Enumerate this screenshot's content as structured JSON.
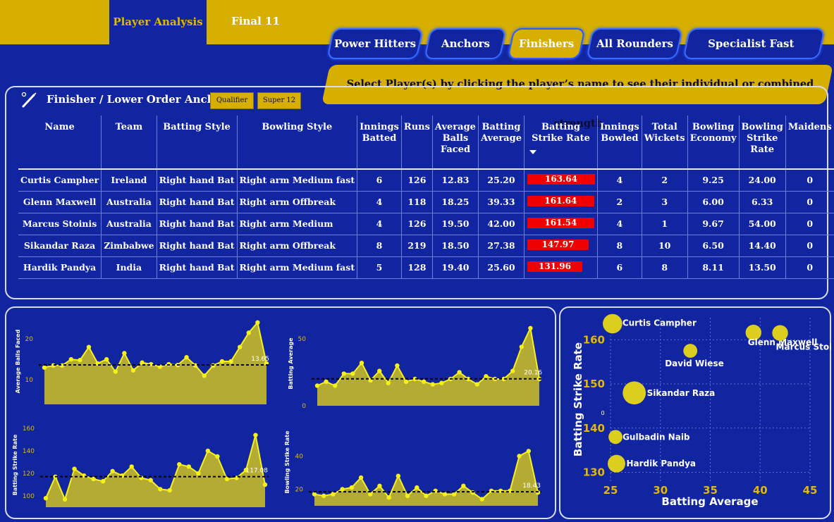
{
  "nav": {
    "tabs": [
      {
        "label": "Player Analysis",
        "active": true
      },
      {
        "label": "Final 11",
        "active": false
      }
    ]
  },
  "categories": [
    {
      "label": "Power Hitters",
      "active": false
    },
    {
      "label": "Anchors",
      "active": false
    },
    {
      "label": "Finishers",
      "active": true
    },
    {
      "label": "All Rounders",
      "active": false
    },
    {
      "label": "Specialist Fast Bowlers",
      "active": false
    }
  ],
  "hint": "Select Player(s) by clicking the player’s name to see their individual or combined strength.",
  "section": {
    "title": "Finisher / Lower Order Anchor",
    "icon": "cricket-bat-icon",
    "filters": [
      "Qualifier",
      "Super 12"
    ]
  },
  "table": {
    "columns": [
      "Name",
      "Team",
      "Batting Style",
      "Bowling Style",
      "Innings Batted",
      "Runs",
      "Average Balls Faced",
      "Batting Average",
      "Batting Strike Rate",
      "Innings Bowled",
      "Total Wickets",
      "Bowling Economy",
      "Bowling Strike Rate",
      "Maidens"
    ],
    "sorted_column": "Batting Strike Rate",
    "sort_direction": "descending",
    "bar_color": "#f00000",
    "rows": [
      [
        "Curtis Campher",
        "Ireland",
        "Right hand Bat",
        "Right arm Medium fast",
        "6",
        "126",
        "12.83",
        "25.20",
        "163.64",
        "4",
        "2",
        "9.25",
        "24.00",
        "0"
      ],
      [
        "Glenn Maxwell",
        "Australia",
        "Right hand Bat",
        "Right arm Offbreak",
        "4",
        "118",
        "18.25",
        "39.33",
        "161.64",
        "2",
        "3",
        "6.00",
        "6.33",
        "0"
      ],
      [
        "Marcus Stoinis",
        "Australia",
        "Right hand Bat",
        "Right arm Medium",
        "4",
        "126",
        "19.50",
        "42.00",
        "161.54",
        "4",
        "1",
        "9.67",
        "54.00",
        "0"
      ],
      [
        "Sikandar Raza",
        "Zimbabwe",
        "Right hand Bat",
        "Right arm Offbreak",
        "8",
        "219",
        "18.50",
        "27.38",
        "147.97",
        "8",
        "10",
        "6.50",
        "14.40",
        "0"
      ],
      [
        "Hardik Pandya",
        "India",
        "Right hand Bat",
        "Right arm Medium fast",
        "5",
        "128",
        "19.40",
        "25.60",
        "131.96",
        "6",
        "8",
        "8.11",
        "13.50",
        "0"
      ]
    ]
  },
  "chart_data": [
    {
      "type": "area",
      "ylabel": "Average Balls Faced",
      "yticks": [
        10,
        20
      ],
      "ylim": [
        4,
        25
      ],
      "values": [
        13,
        13.5,
        13.5,
        15,
        14.8,
        18,
        14,
        15,
        12,
        16.5,
        12.3,
        14.2,
        13.8,
        13.2,
        13.8,
        13.6,
        15.5,
        13.5,
        11,
        13.5,
        14.5,
        14.5,
        18,
        21.5,
        24,
        14
      ],
      "average": 13.65,
      "average_label": "13.65",
      "colors": {
        "fill": "#b3ab33",
        "line": "#f5f01a",
        "avg": "#000000"
      }
    },
    {
      "type": "area",
      "ylabel": "Batting Average",
      "yticks": [
        0,
        50
      ],
      "ylim": [
        0,
        60
      ],
      "values": [
        15,
        18,
        15,
        24,
        24,
        32,
        19,
        26,
        17,
        30,
        18,
        20,
        18,
        16,
        17,
        20,
        25,
        20,
        16,
        22,
        20,
        20,
        26,
        44,
        58,
        20
      ],
      "average": 20.16,
      "average_label": "20.16",
      "colors": {
        "fill": "#b3ab33",
        "line": "#f5f01a",
        "avg": "#000000"
      }
    },
    {
      "type": "area",
      "ylabel": "Batting Strike Rate",
      "yticks": [
        100,
        120,
        140,
        160
      ],
      "ylim": [
        90,
        165
      ],
      "values": [
        98,
        117,
        97,
        124,
        118,
        115,
        113,
        122,
        118,
        126,
        116,
        114,
        106,
        105,
        128,
        126,
        120,
        140,
        135,
        115,
        116,
        123,
        154,
        110
      ],
      "average": 117.08,
      "average_label": "117.08",
      "colors": {
        "fill": "#b3ab33",
        "line": "#f5f01a",
        "avg": "#000000"
      }
    },
    {
      "type": "area",
      "ylabel": "Bowling Strike Rate",
      "yticks": [
        20,
        40
      ],
      "ylim": [
        10,
        55
      ],
      "values": [
        17,
        16,
        17,
        20,
        21,
        27,
        17,
        22,
        15,
        28,
        16,
        21,
        16,
        19,
        17,
        17,
        22,
        18,
        14,
        19,
        19,
        19,
        40,
        43,
        18
      ],
      "average": 18.43,
      "average_label": "18.43",
      "colors": {
        "fill": "#b3ab33",
        "line": "#f5f01a",
        "avg": "#000000"
      }
    },
    {
      "type": "scatter",
      "xlabel": "Batting Average",
      "ylabel": "Batting Strike Rate",
      "xlim": [
        25,
        45
      ],
      "ylim": [
        128,
        165
      ],
      "xticks": [
        25,
        30,
        35,
        40,
        45
      ],
      "yticks": [
        130,
        140,
        150,
        160
      ],
      "grid": true,
      "point_color": "#dcce1e",
      "points": [
        {
          "label": "Curtis Campher",
          "x": 25.2,
          "y": 163.64,
          "size": 6
        },
        {
          "label": "Glenn Maxwell",
          "x": 39.33,
          "y": 161.64,
          "size": 4
        },
        {
          "label": "Marcus Stoinis",
          "x": 42.0,
          "y": 161.54,
          "size": 4
        },
        {
          "label": "David Wiese",
          "x": 33.0,
          "y": 157.5,
          "size": 3
        },
        {
          "label": "Sikandar Raza",
          "x": 27.38,
          "y": 147.97,
          "size": 8
        },
        {
          "label": "Gulbadin Naib",
          "x": 25.5,
          "y": 138.0,
          "size": 3
        },
        {
          "label": "Hardik Pandya",
          "x": 25.6,
          "y": 131.96,
          "size": 5
        }
      ],
      "annotations": [
        "0"
      ]
    }
  ]
}
